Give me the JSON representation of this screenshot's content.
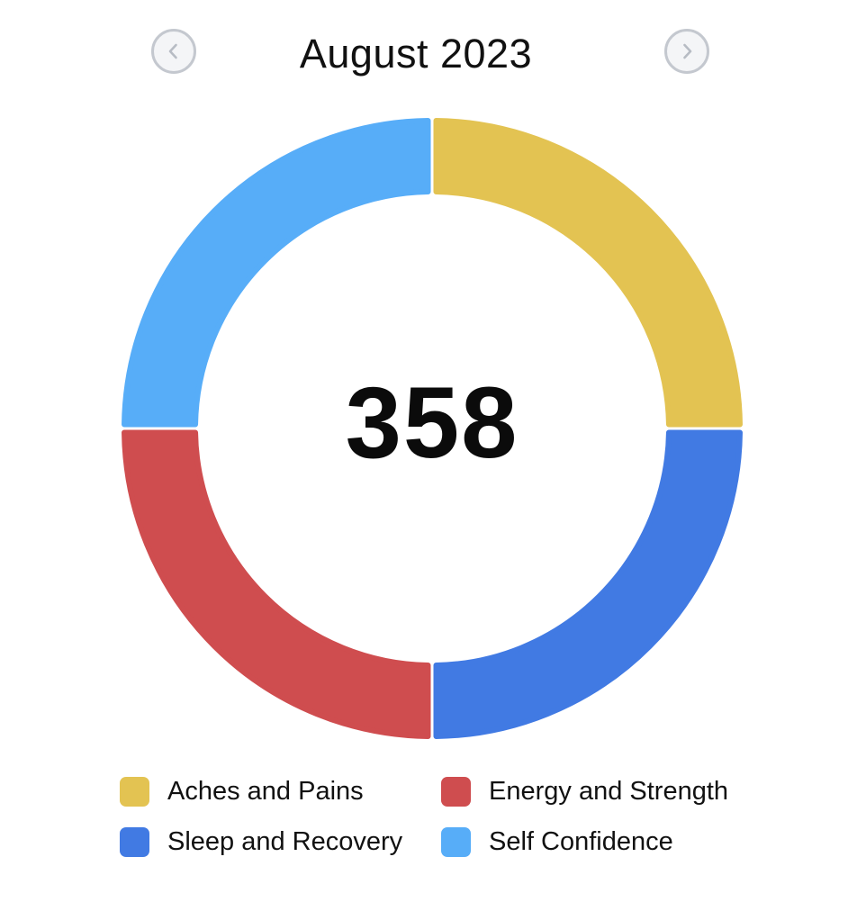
{
  "header": {
    "title": "August 2023",
    "prev_icon": "chevron-left-icon",
    "next_icon": "chevron-right-icon"
  },
  "center": {
    "total": "358"
  },
  "chart_data": {
    "type": "pie",
    "title": "August 2023",
    "center_label": "358",
    "categories": [
      "Aches and Pains",
      "Sleep and Recovery",
      "Energy and Strength",
      "Self Confidence"
    ],
    "values": [
      25,
      25,
      25,
      25
    ],
    "colors": [
      "#E3C352",
      "#417AE3",
      "#CF4D4F",
      "#57ADF8"
    ],
    "legend_placement": "bottom",
    "grid": false
  },
  "legend": [
    {
      "label": "Aches and Pains",
      "color": "#E3C352"
    },
    {
      "label": "Energy and Strength",
      "color": "#CF4D4F"
    },
    {
      "label": "Sleep and Recovery",
      "color": "#417AE3"
    },
    {
      "label": "Self Confidence",
      "color": "#57ADF8"
    }
  ]
}
